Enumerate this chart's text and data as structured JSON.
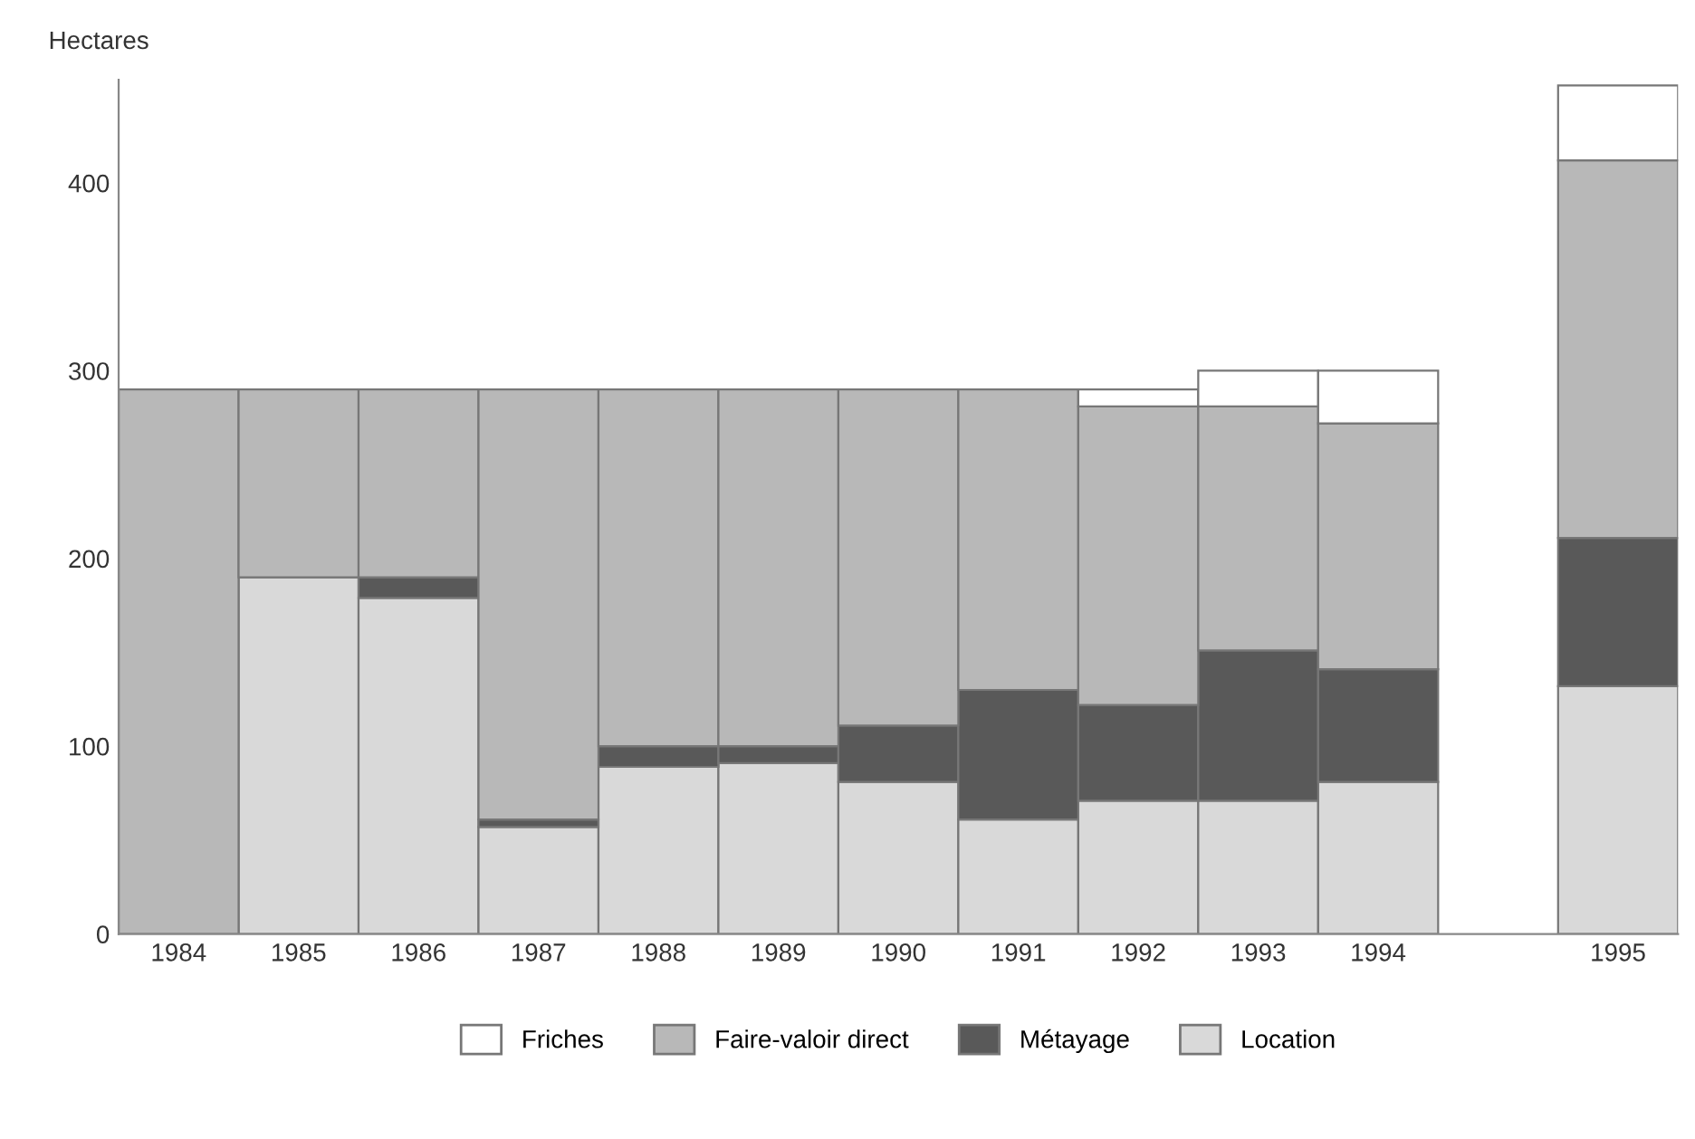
{
  "chart_data": {
    "type": "bar",
    "stacked": true,
    "ylabel": "Hectares",
    "categories": [
      "1984",
      "1985",
      "1986",
      "1987",
      "1988",
      "1989",
      "1990",
      "1991",
      "1992",
      "1993",
      "1994",
      null,
      "1995"
    ],
    "series": [
      {
        "name": "Location",
        "color": "#d9d9d9",
        "values": [
          null,
          190,
          179,
          57,
          89,
          91,
          81,
          61,
          71,
          71,
          81,
          null,
          132
        ]
      },
      {
        "name": "Métayage",
        "color": "#595959",
        "values": [
          null,
          null,
          11,
          4,
          11,
          9,
          30,
          69,
          51,
          80,
          60,
          null,
          79
        ]
      },
      {
        "name": "Faire-valoir direct",
        "color": "#b8b8b8",
        "values": [
          290,
          100,
          100,
          229,
          190,
          190,
          179,
          160,
          159,
          130,
          131,
          null,
          201
        ]
      },
      {
        "name": "Friches",
        "color": "#ffffff",
        "values": [
          null,
          null,
          null,
          null,
          null,
          null,
          null,
          null,
          9,
          19,
          28,
          null,
          40
        ]
      }
    ],
    "ylim": [
      0,
      455
    ],
    "yticks": [
      0,
      100,
      200,
      300,
      400
    ],
    "grid": false,
    "legend": "bottom"
  }
}
